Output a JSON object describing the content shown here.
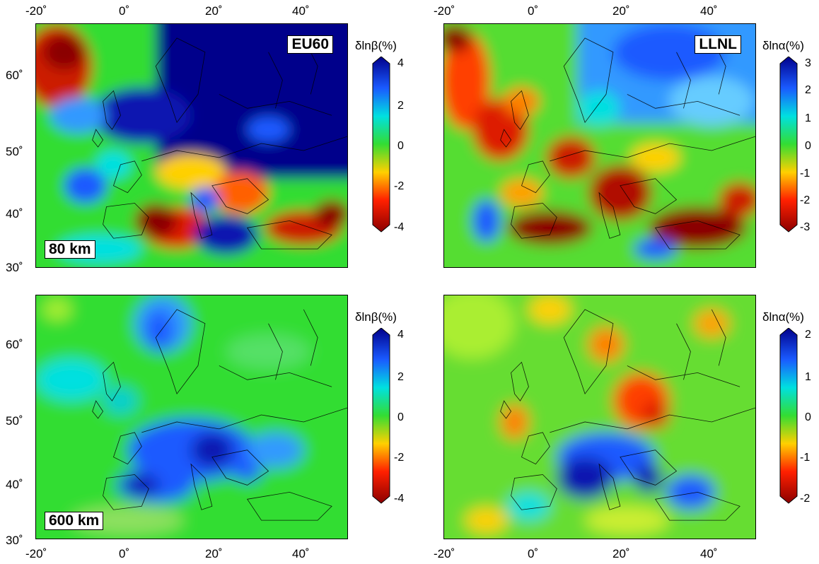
{
  "figure": {
    "top_xlabels": [
      "-20˚",
      "0˚",
      "20˚",
      "40˚"
    ],
    "bottom_xlabels": [
      "-20˚",
      "0˚",
      "20˚",
      "40˚"
    ],
    "ylabels_top": [
      "60˚",
      "50˚",
      "40˚",
      "30˚"
    ],
    "ylabels_bottom": [
      "60˚",
      "50˚",
      "40˚",
      "30˚"
    ]
  },
  "panels": [
    {
      "model_label": "EU60",
      "depth_label": "80 km",
      "colorbar": {
        "title": "δlnβ(%)",
        "ticks": [
          "4",
          "2",
          "0",
          "-2",
          "-4"
        ]
      }
    },
    {
      "model_label": "LLNL",
      "depth_label": "",
      "colorbar": {
        "title": "δlnα(%)",
        "ticks": [
          "3",
          "2",
          "1",
          "0",
          "-1",
          "-2",
          "-3"
        ]
      }
    },
    {
      "model_label": "",
      "depth_label": "600 km",
      "colorbar": {
        "title": "δlnβ(%)",
        "ticks": [
          "4",
          "2",
          "0",
          "-2",
          "-4"
        ]
      }
    },
    {
      "model_label": "",
      "depth_label": "",
      "colorbar": {
        "title": "δlnα(%)",
        "ticks": [
          "2",
          "1",
          "0",
          "-1",
          "-2"
        ]
      }
    }
  ],
  "colors": {
    "strong_negative": "#8b0000",
    "negative": "#ff2000",
    "mild_negative": "#ffd000",
    "neutral": "#33dd33",
    "mild_positive": "#00e0e0",
    "positive": "#1a5aff",
    "strong_positive": "#00008b"
  }
}
